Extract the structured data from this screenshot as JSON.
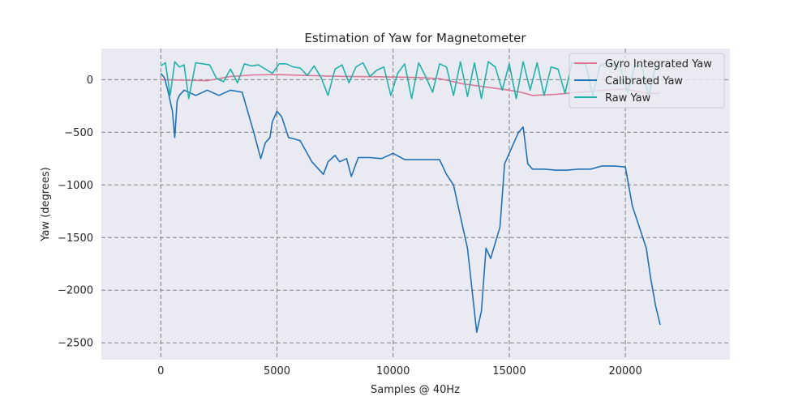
{
  "chart_data": {
    "type": "line",
    "title": "Estimation of Yaw for Magnetometer",
    "xlabel": "Samples @ 40Hz",
    "ylabel": "Yaw (degrees)",
    "xlim": [
      -2560,
      24500
    ],
    "ylim": [
      -2660,
      295
    ],
    "xticks": [
      0,
      5000,
      10000,
      15000,
      20000
    ],
    "yticks": [
      0,
      -500,
      -1000,
      -1500,
      -2000,
      -2500
    ],
    "xtick_labels": [
      "0",
      "5000",
      "10000",
      "15000",
      "20000"
    ],
    "ytick_labels": [
      "0",
      "−500",
      "−1000",
      "−1500",
      "−2000",
      "−2500"
    ],
    "grid": true,
    "legend_position": "top-right",
    "series": [
      {
        "name": "Gyro Integrated Yaw",
        "color": "#dd7593",
        "x": [
          0,
          1000,
          2000,
          3000,
          4000,
          5000,
          6000,
          7000,
          8000,
          9000,
          10000,
          11000,
          12000,
          13000,
          14000,
          15000,
          15500,
          16000,
          17000,
          18000,
          19000,
          20000,
          20500,
          21000,
          21500
        ],
        "y": [
          0,
          -5,
          -10,
          30,
          45,
          48,
          42,
          35,
          30,
          28,
          25,
          20,
          10,
          -40,
          -70,
          -100,
          -120,
          -150,
          -140,
          -120,
          -100,
          -90,
          -110,
          -130,
          -130
        ]
      },
      {
        "name": "Calibrated Yaw",
        "color": "#2171b5",
        "x": [
          0,
          150,
          300,
          500,
          600,
          700,
          800,
          1000,
          1500,
          2000,
          2500,
          3000,
          3500,
          4000,
          4300,
          4500,
          4700,
          4800,
          4900,
          5000,
          5200,
          5500,
          5700,
          6000,
          6500,
          7000,
          7200,
          7500,
          7700,
          8000,
          8200,
          8500,
          9000,
          9500,
          10000,
          10500,
          11000,
          11500,
          12000,
          12300,
          12600,
          13000,
          13200,
          13400,
          13600,
          13800,
          14000,
          14200,
          14400,
          14600,
          14800,
          15000,
          15200,
          15400,
          15600,
          15800,
          16000,
          16500,
          17000,
          17500,
          18000,
          18500,
          19000,
          19500,
          20000,
          20300,
          20600,
          20900,
          21100,
          21300,
          21500
        ],
        "y": [
          60,
          20,
          -100,
          -300,
          -550,
          -200,
          -150,
          -100,
          -150,
          -100,
          -150,
          -100,
          -120,
          -500,
          -750,
          -600,
          -550,
          -400,
          -350,
          -300,
          -350,
          -550,
          -560,
          -580,
          -780,
          -900,
          -780,
          -720,
          -780,
          -750,
          -920,
          -740,
          -740,
          -750,
          -700,
          -760,
          -760,
          -760,
          -760,
          -900,
          -1000,
          -1400,
          -1600,
          -2000,
          -2400,
          -2200,
          -1600,
          -1700,
          -1550,
          -1400,
          -800,
          -700,
          -600,
          -500,
          -450,
          -800,
          -850,
          -850,
          -860,
          -860,
          -850,
          -850,
          -820,
          -820,
          -830,
          -1200,
          -1400,
          -1600,
          -1900,
          -2150,
          -2330
        ]
      },
      {
        "name": "Raw Yaw",
        "color": "#20b2aa",
        "x": [
          0,
          200,
          400,
          600,
          800,
          1000,
          1200,
          1500,
          1800,
          2100,
          2400,
          2700,
          3000,
          3300,
          3600,
          3900,
          4200,
          4500,
          4800,
          5100,
          5400,
          5700,
          6000,
          6300,
          6600,
          6900,
          7200,
          7500,
          7800,
          8100,
          8400,
          8700,
          9000,
          9300,
          9600,
          9900,
          10200,
          10500,
          10800,
          11100,
          11400,
          11700,
          12000,
          12300,
          12600,
          12900,
          13200,
          13500,
          13800,
          14100,
          14400,
          14700,
          15000,
          15300,
          15600,
          15900,
          16200,
          16500,
          16800,
          17100,
          17400,
          17700,
          18000,
          18300,
          18600,
          18900,
          19200,
          19500,
          19800,
          20100,
          20400,
          20700,
          21000,
          21300
        ],
        "y": [
          130,
          160,
          -150,
          170,
          120,
          140,
          -180,
          160,
          150,
          140,
          10,
          -20,
          100,
          -30,
          150,
          130,
          140,
          100,
          60,
          150,
          150,
          120,
          110,
          40,
          130,
          20,
          -150,
          100,
          140,
          -30,
          120,
          160,
          30,
          90,
          120,
          -150,
          60,
          150,
          -180,
          160,
          30,
          -120,
          150,
          120,
          -150,
          170,
          -160,
          160,
          -180,
          170,
          120,
          -100,
          150,
          -180,
          170,
          -100,
          160,
          -150,
          120,
          100,
          -130,
          160,
          150,
          140,
          -150,
          130,
          160,
          140,
          110,
          -120,
          130,
          140,
          -160,
          130
        ]
      }
    ]
  }
}
